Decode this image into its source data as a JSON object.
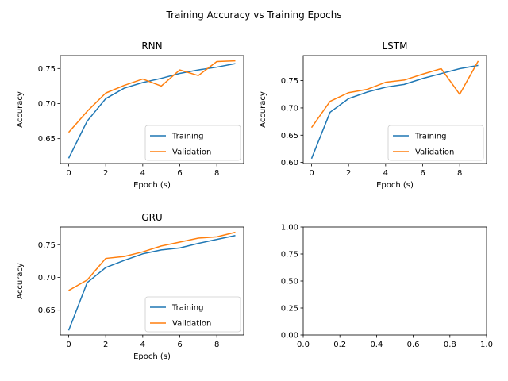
{
  "figure": {
    "suptitle": "Training Accuracy vs Training Epochs"
  },
  "chart_data": [
    {
      "type": "line",
      "title": "RNN",
      "xlabel": "Epoch (s)",
      "ylabel": "Accuracy",
      "x": [
        0,
        1,
        2,
        3,
        4,
        5,
        6,
        7,
        8,
        9
      ],
      "xlim": [
        -0.45,
        9.45
      ],
      "ylim": [
        0.6145,
        0.7685
      ],
      "xticks": [
        0,
        2,
        4,
        6,
        8
      ],
      "yticks": [
        0.65,
        0.7,
        0.75
      ],
      "series": [
        {
          "name": "Training",
          "color": "#1f77b4",
          "values": [
            0.622,
            0.675,
            0.707,
            0.722,
            0.73,
            0.736,
            0.743,
            0.748,
            0.752,
            0.757
          ]
        },
        {
          "name": "Validation",
          "color": "#ff7f0e",
          "values": [
            0.659,
            0.689,
            0.715,
            0.726,
            0.735,
            0.725,
            0.748,
            0.74,
            0.76,
            0.761
          ]
        }
      ],
      "legend": "lower right",
      "grid": false
    },
    {
      "type": "line",
      "title": "LSTM",
      "xlabel": "Epoch (s)",
      "ylabel": "Accuracy",
      "x": [
        0,
        1,
        2,
        3,
        4,
        5,
        6,
        7,
        8,
        9
      ],
      "xlim": [
        -0.45,
        9.45
      ],
      "ylim": [
        0.598,
        0.796
      ],
      "xticks": [
        0,
        2,
        4,
        6,
        8
      ],
      "yticks": [
        0.6,
        0.65,
        0.7,
        0.75
      ],
      "series": [
        {
          "name": "Training",
          "color": "#1f77b4",
          "values": [
            0.607,
            0.692,
            0.717,
            0.729,
            0.738,
            0.743,
            0.754,
            0.763,
            0.772,
            0.778
          ]
        },
        {
          "name": "Validation",
          "color": "#ff7f0e",
          "values": [
            0.664,
            0.712,
            0.728,
            0.734,
            0.747,
            0.751,
            0.762,
            0.772,
            0.725,
            0.786
          ]
        }
      ],
      "legend": "lower right",
      "grid": false
    },
    {
      "type": "line",
      "title": "GRU",
      "xlabel": "Epoch (s)",
      "ylabel": "Accuracy",
      "x": [
        0,
        1,
        2,
        3,
        4,
        5,
        6,
        7,
        8,
        9
      ],
      "xlim": [
        -0.45,
        9.45
      ],
      "ylim": [
        0.612,
        0.777
      ],
      "xticks": [
        0,
        2,
        4,
        6,
        8
      ],
      "yticks": [
        0.65,
        0.7,
        0.75
      ],
      "series": [
        {
          "name": "Training",
          "color": "#1f77b4",
          "values": [
            0.619,
            0.692,
            0.715,
            0.726,
            0.736,
            0.742,
            0.745,
            0.752,
            0.758,
            0.764
          ]
        },
        {
          "name": "Validation",
          "color": "#ff7f0e",
          "values": [
            0.68,
            0.696,
            0.729,
            0.732,
            0.739,
            0.748,
            0.754,
            0.76,
            0.762,
            0.769
          ]
        }
      ],
      "legend": "lower right",
      "grid": false
    },
    {
      "type": "line",
      "title": "",
      "xlabel": "",
      "ylabel": "",
      "x": [],
      "xlim": [
        0,
        1
      ],
      "ylim": [
        0,
        1
      ],
      "xticks": [
        0.0,
        0.2,
        0.4,
        0.6,
        0.8,
        1.0
      ],
      "yticks": [
        0.0,
        0.25,
        0.5,
        0.75,
        1.0
      ],
      "xtick_labels": [
        "0.0",
        "0.2",
        "0.4",
        "0.6",
        "0.8",
        "1.0"
      ],
      "ytick_labels": [
        "0.00",
        "0.25",
        "0.50",
        "0.75",
        "1.00"
      ],
      "series": [],
      "legend": "none",
      "grid": false
    }
  ]
}
